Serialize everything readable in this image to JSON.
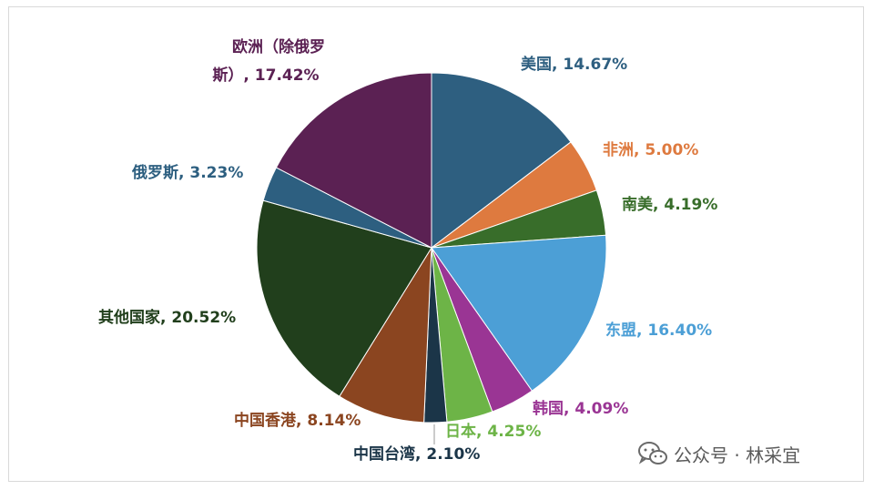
{
  "chart_data": {
    "type": "pie",
    "slices": [
      {
        "label": "美国, 14.67%",
        "value": 14.67,
        "color": "#2e5f80"
      },
      {
        "label": "非洲, 5.00%",
        "value": 5.0,
        "color": "#de7a3f"
      },
      {
        "label": "南美, 4.19%",
        "value": 4.19,
        "color": "#386d2a"
      },
      {
        "label": "东盟, 16.40%",
        "value": 16.4,
        "color": "#4c9fd6"
      },
      {
        "label": "韩国, 4.09%",
        "value": 4.09,
        "color": "#9a3594"
      },
      {
        "label": "日本, 4.25%",
        "value": 4.25,
        "color": "#6db447"
      },
      {
        "label": "中国台湾, 2.10%",
        "value": 2.1,
        "color": "#1b3548"
      },
      {
        "label": "中国香港, 8.14%",
        "value": 8.14,
        "color": "#8b4520"
      },
      {
        "label": "其他国家, 20.52%",
        "value": 20.52,
        "color": "#213f1c"
      },
      {
        "label": "俄罗斯, 3.23%",
        "value": 3.23,
        "color": "#2d5f80"
      },
      {
        "label": "欧洲（除俄罗斯）, 17.42%",
        "value": 17.42,
        "color": "#5b2153"
      }
    ],
    "label_colors": [
      "#2e5f80",
      "#de7a3f",
      "#386d2a",
      "#4c9fd6",
      "#9a3594",
      "#6db447",
      "#1b3548",
      "#8b4520",
      "#213f1c",
      "#2d5f80",
      "#5b2153"
    ]
  },
  "watermark": {
    "icon": "wechat-icon",
    "text": "公众号 · 林采宜"
  }
}
